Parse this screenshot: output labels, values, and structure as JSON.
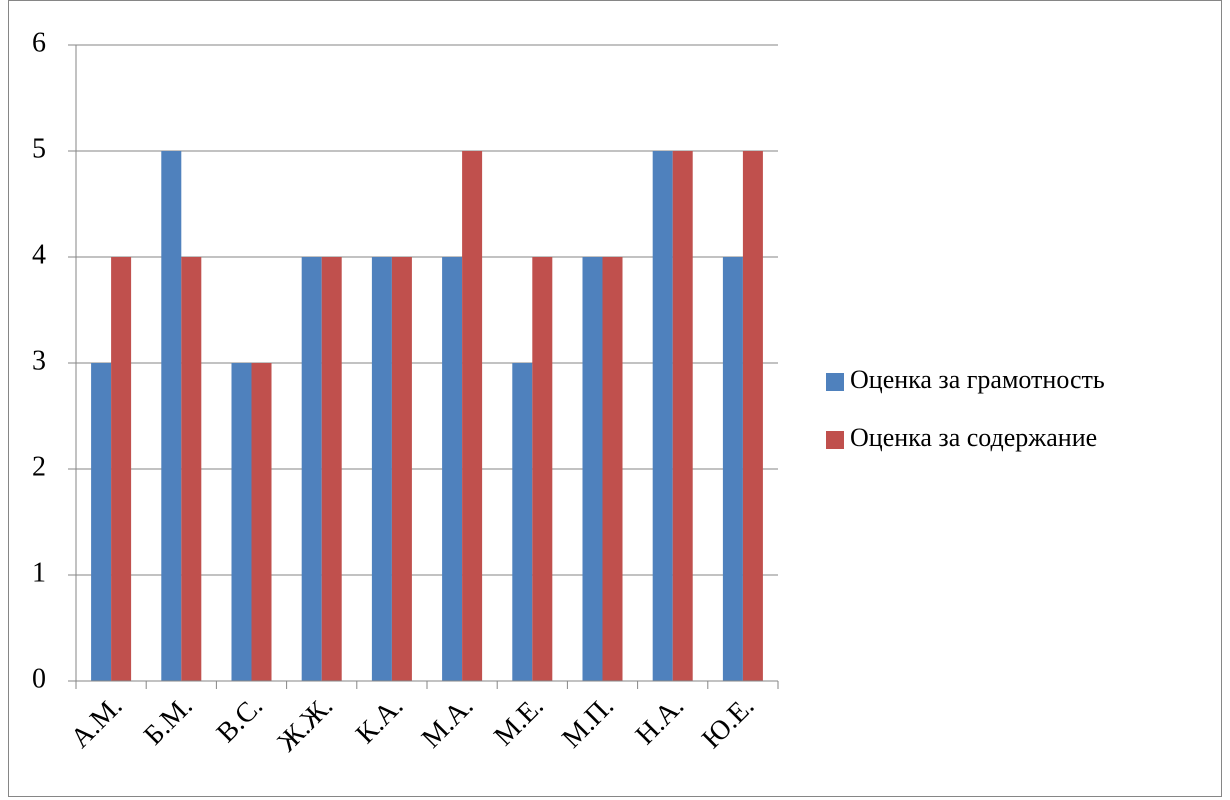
{
  "chart_data": {
    "type": "bar",
    "categories": [
      "А.М.",
      "Б.М.",
      "В.С.",
      "Ж.Ж.",
      "К.А.",
      "М.А.",
      "М.Е.",
      "М.П.",
      "Н.А.",
      "Ю.Е."
    ],
    "series": [
      {
        "name": "Оценка за грамотность",
        "color": "#4f81bd",
        "values": [
          3,
          5,
          3,
          4,
          4,
          4,
          3,
          4,
          5,
          4
        ]
      },
      {
        "name": "Оценка за содержание",
        "color": "#c0504d",
        "values": [
          4,
          4,
          3,
          4,
          4,
          5,
          4,
          4,
          5,
          5
        ]
      }
    ],
    "ylim": [
      0,
      6
    ],
    "yticks": [
      0,
      1,
      2,
      3,
      4,
      5,
      6
    ],
    "grid": true,
    "legend": "right"
  }
}
